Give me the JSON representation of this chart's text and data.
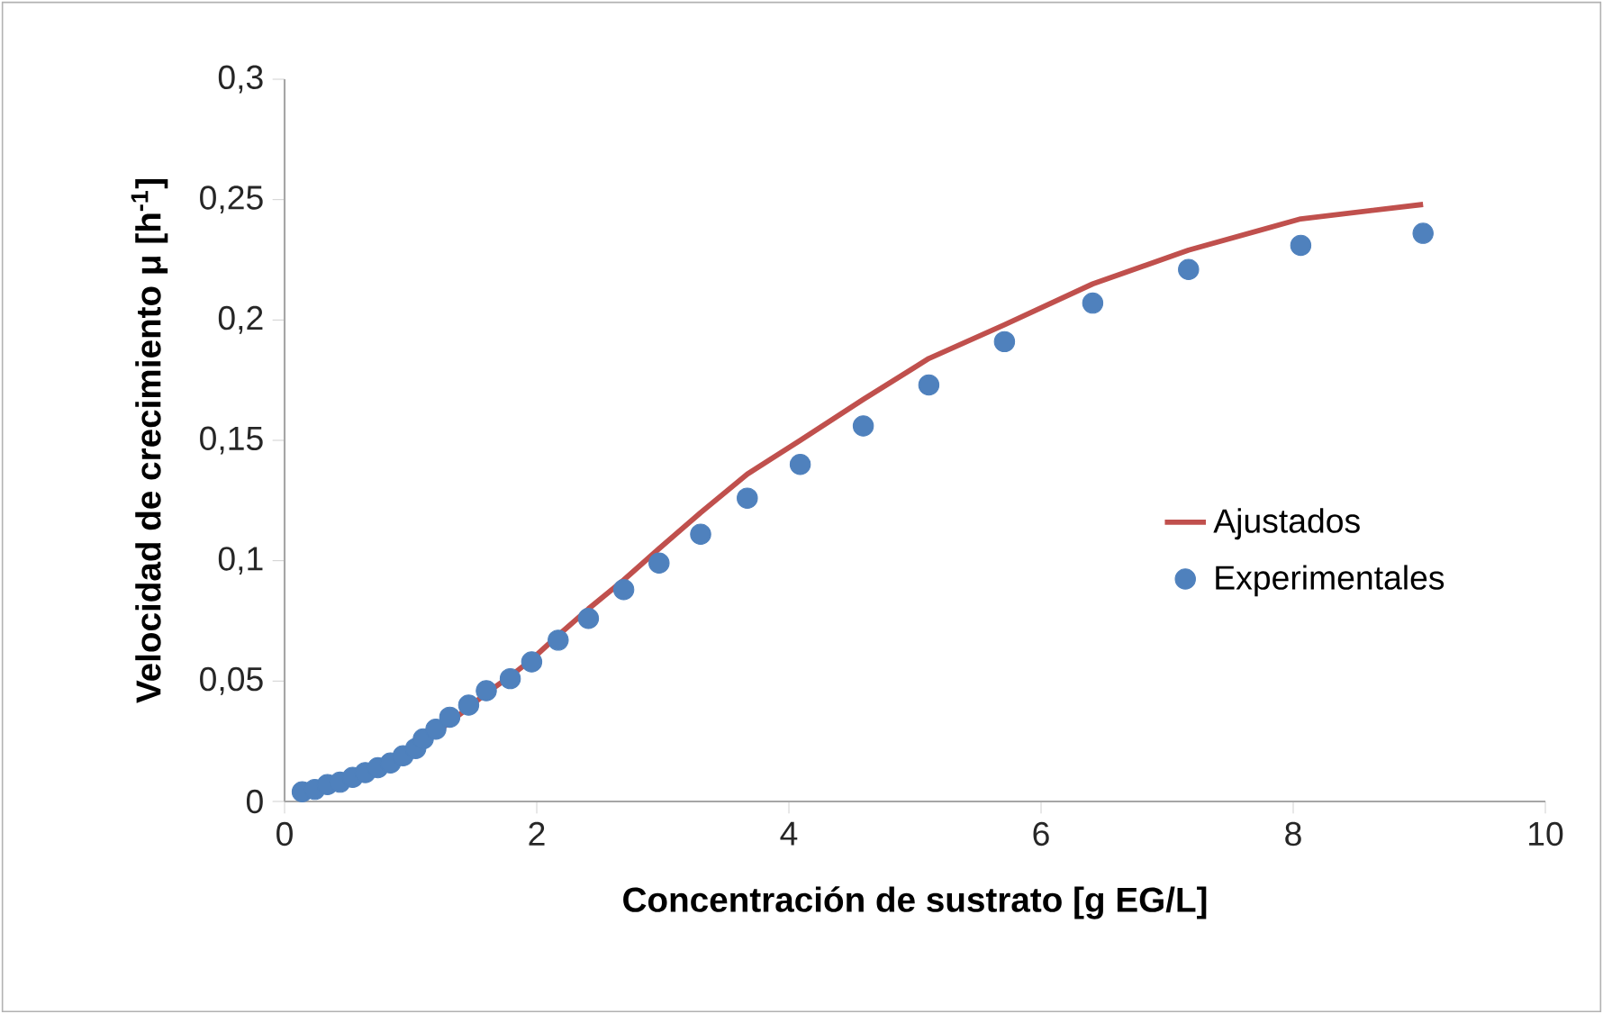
{
  "chart_data": {
    "type": "scatter",
    "xlabel": "Concentración de sustrato [g EG/L]",
    "ylabel": "Velocidad de crecimiento μ [h$^{-1}$]",
    "xlim": [
      0,
      10
    ],
    "ylim": [
      0,
      0.3
    ],
    "xticks": [
      0,
      2,
      4,
      6,
      8,
      10
    ],
    "yticks": [
      0,
      {
        "value": 0.05,
        "label": "0,05"
      },
      {
        "value": 0.1,
        "label": "0,1"
      },
      {
        "value": 0.15,
        "label": "0,15"
      },
      {
        "value": 0.2,
        "label": "0,2"
      },
      {
        "value": 0.25,
        "label": "0,25"
      },
      {
        "value": 0.3,
        "label": "0,3"
      }
    ],
    "grid": false,
    "legend": "right",
    "series": [
      {
        "name": "Ajustados",
        "type": "line",
        "color": "#c0504d",
        "marker": "none",
        "line_style": "solid",
        "x": [
          1.1,
          1.31,
          1.46,
          1.6,
          1.79,
          1.96,
          2.17,
          2.41,
          2.69,
          2.97,
          3.3,
          3.67,
          4.09,
          4.59,
          5.11,
          5.71,
          6.41,
          7.17,
          8.06,
          9.03
        ],
        "values": [
          0.024,
          0.033,
          0.039,
          0.045,
          0.052,
          0.059,
          0.069,
          0.08,
          0.092,
          0.105,
          0.12,
          0.136,
          0.15,
          0.167,
          0.184,
          0.198,
          0.215,
          0.229,
          0.242,
          0.248
        ]
      },
      {
        "name": "Experimentales",
        "color": "#4f81bd",
        "marker": "circle",
        "x": [
          0.14,
          0.24,
          0.34,
          0.44,
          0.54,
          0.64,
          0.74,
          0.84,
          0.94,
          1.04,
          1.1,
          1.2,
          1.31,
          1.46,
          1.6,
          1.79,
          1.96,
          2.17,
          2.41,
          2.69,
          2.97,
          3.3,
          3.67,
          4.09,
          4.59,
          5.11,
          5.71,
          6.41,
          7.17,
          8.06,
          9.03
        ],
        "values": [
          0.004,
          0.005,
          0.007,
          0.008,
          0.01,
          0.012,
          0.014,
          0.016,
          0.019,
          0.022,
          0.026,
          0.03,
          0.035,
          0.04,
          0.046,
          0.051,
          0.058,
          0.067,
          0.076,
          0.088,
          0.099,
          0.111,
          0.126,
          0.14,
          0.156,
          0.173,
          0.191,
          0.207,
          0.221,
          0.231,
          0.236
        ]
      }
    ]
  }
}
